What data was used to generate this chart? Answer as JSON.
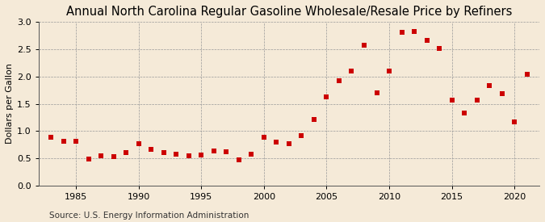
{
  "title": "Annual North Carolina Regular Gasoline Wholesale/Resale Price by Refiners",
  "ylabel": "Dollars per Gallon",
  "source": "Source: U.S. Energy Information Administration",
  "background_color": "#f5ead8",
  "marker_color": "#cc0000",
  "years": [
    1983,
    1984,
    1985,
    1986,
    1987,
    1988,
    1989,
    1990,
    1991,
    1992,
    1993,
    1994,
    1995,
    1996,
    1997,
    1998,
    1999,
    2000,
    2001,
    2002,
    2003,
    2004,
    2005,
    2006,
    2007,
    2008,
    2009,
    2010,
    2011,
    2012,
    2013,
    2014,
    2015,
    2016,
    2017,
    2018,
    2019,
    2020,
    2021
  ],
  "values": [
    0.88,
    0.81,
    0.81,
    0.49,
    0.55,
    0.53,
    0.6,
    0.76,
    0.66,
    0.6,
    0.57,
    0.55,
    0.56,
    0.63,
    0.62,
    0.47,
    0.57,
    0.88,
    0.79,
    0.77,
    0.92,
    1.21,
    1.63,
    1.92,
    2.1,
    2.57,
    1.7,
    2.1,
    2.81,
    2.82,
    2.67,
    2.52,
    1.56,
    1.33,
    1.57,
    1.84,
    1.68,
    1.17,
    2.04
  ],
  "xlim": [
    1982,
    2022
  ],
  "ylim": [
    0.0,
    3.0
  ],
  "yticks": [
    0.0,
    0.5,
    1.0,
    1.5,
    2.0,
    2.5,
    3.0
  ],
  "xticks": [
    1985,
    1990,
    1995,
    2000,
    2005,
    2010,
    2015,
    2020
  ],
  "title_fontsize": 10.5,
  "ylabel_fontsize": 8,
  "tick_fontsize": 8,
  "source_fontsize": 7.5,
  "marker_size": 14
}
